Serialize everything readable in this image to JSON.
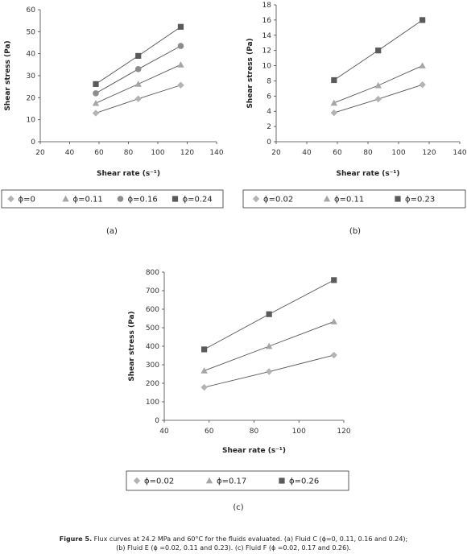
{
  "chart_data": [
    {
      "type": "line",
      "panel_label": "(a)",
      "xlabel": "Shear rate (s⁻¹)",
      "ylabel": "Shear stress (Pa)",
      "xlim": [
        20,
        140
      ],
      "ylim": [
        0,
        60
      ],
      "xticks": [
        "20",
        "40",
        "60",
        "80",
        "100",
        "120",
        "140"
      ],
      "yticks": [
        "0",
        "10",
        "20",
        "30",
        "40",
        "50",
        "60"
      ],
      "x": [
        57.8,
        86.7,
        115.6
      ],
      "legend_position": "bottom",
      "series": [
        {
          "name": "ϕ=0",
          "marker": "diamond",
          "color": "#b3b3b3",
          "values": [
            13,
            19.5,
            25.7
          ]
        },
        {
          "name": "ϕ=0.11",
          "marker": "triangle",
          "color": "#a6a6a6",
          "values": [
            17.5,
            26.2,
            35
          ]
        },
        {
          "name": "ϕ=0.16",
          "marker": "circle",
          "color": "#8c8c8c",
          "values": [
            22,
            33,
            43.5
          ]
        },
        {
          "name": "ϕ=0.24",
          "marker": "square",
          "color": "#5a5a5a",
          "values": [
            26.2,
            39,
            52.2
          ]
        }
      ]
    },
    {
      "type": "line",
      "panel_label": "(b)",
      "xlabel": "Shear rate (s⁻¹)",
      "ylabel": "Shear stress (Pa)",
      "xlim": [
        20,
        140
      ],
      "ylim": [
        0,
        18
      ],
      "xticks": [
        "20",
        "40",
        "60",
        "80",
        "100",
        "120",
        "140"
      ],
      "yticks": [
        "0",
        "2",
        "4",
        "6",
        "8",
        "10",
        "12",
        "14",
        "16",
        "18"
      ],
      "x": [
        57.8,
        86.7,
        115.6
      ],
      "legend_position": "bottom",
      "series": [
        {
          "name": "ϕ=0.02",
          "marker": "diamond",
          "color": "#b3b3b3",
          "values": [
            3.8,
            5.6,
            7.5
          ]
        },
        {
          "name": "ϕ=0.11",
          "marker": "triangle",
          "color": "#a6a6a6",
          "values": [
            5.1,
            7.4,
            10
          ]
        },
        {
          "name": "ϕ=0.23",
          "marker": "square",
          "color": "#5a5a5a",
          "values": [
            8.1,
            12,
            16
          ]
        }
      ]
    },
    {
      "type": "line",
      "panel_label": "(c)",
      "xlabel": "Shear rate (s⁻¹)",
      "ylabel": "Shear stress (Pa)",
      "xlim": [
        40,
        120
      ],
      "ylim": [
        0,
        800
      ],
      "xticks": [
        "40",
        "60",
        "80",
        "100",
        "120"
      ],
      "yticks": [
        "0",
        "100",
        "200",
        "300",
        "400",
        "500",
        "600",
        "700",
        "800"
      ],
      "x": [
        57.8,
        86.7,
        115.6
      ],
      "legend_position": "bottom",
      "series": [
        {
          "name": "ϕ=0.02",
          "marker": "diamond",
          "color": "#b3b3b3",
          "values": [
            178,
            263,
            352
          ]
        },
        {
          "name": "ϕ=0.17",
          "marker": "triangle",
          "color": "#a6a6a6",
          "values": [
            268,
            400,
            533
          ]
        },
        {
          "name": "ϕ=0.26",
          "marker": "square",
          "color": "#5a5a5a",
          "values": [
            383,
            573,
            757
          ]
        }
      ]
    }
  ],
  "caption": {
    "bold": "Figure 5.",
    "line1": "Flux curves at 24.2 MPa and 60°C for the fluids evaluated. (a) Fluid C (ϕ=0, 0.11, 0.16 and 0.24);",
    "line2": "(b) Fluid E (ϕ =0.02, 0.11 and 0.23). (c) Fluid F (ϕ =0.02, 0.17 and 0.26)."
  }
}
